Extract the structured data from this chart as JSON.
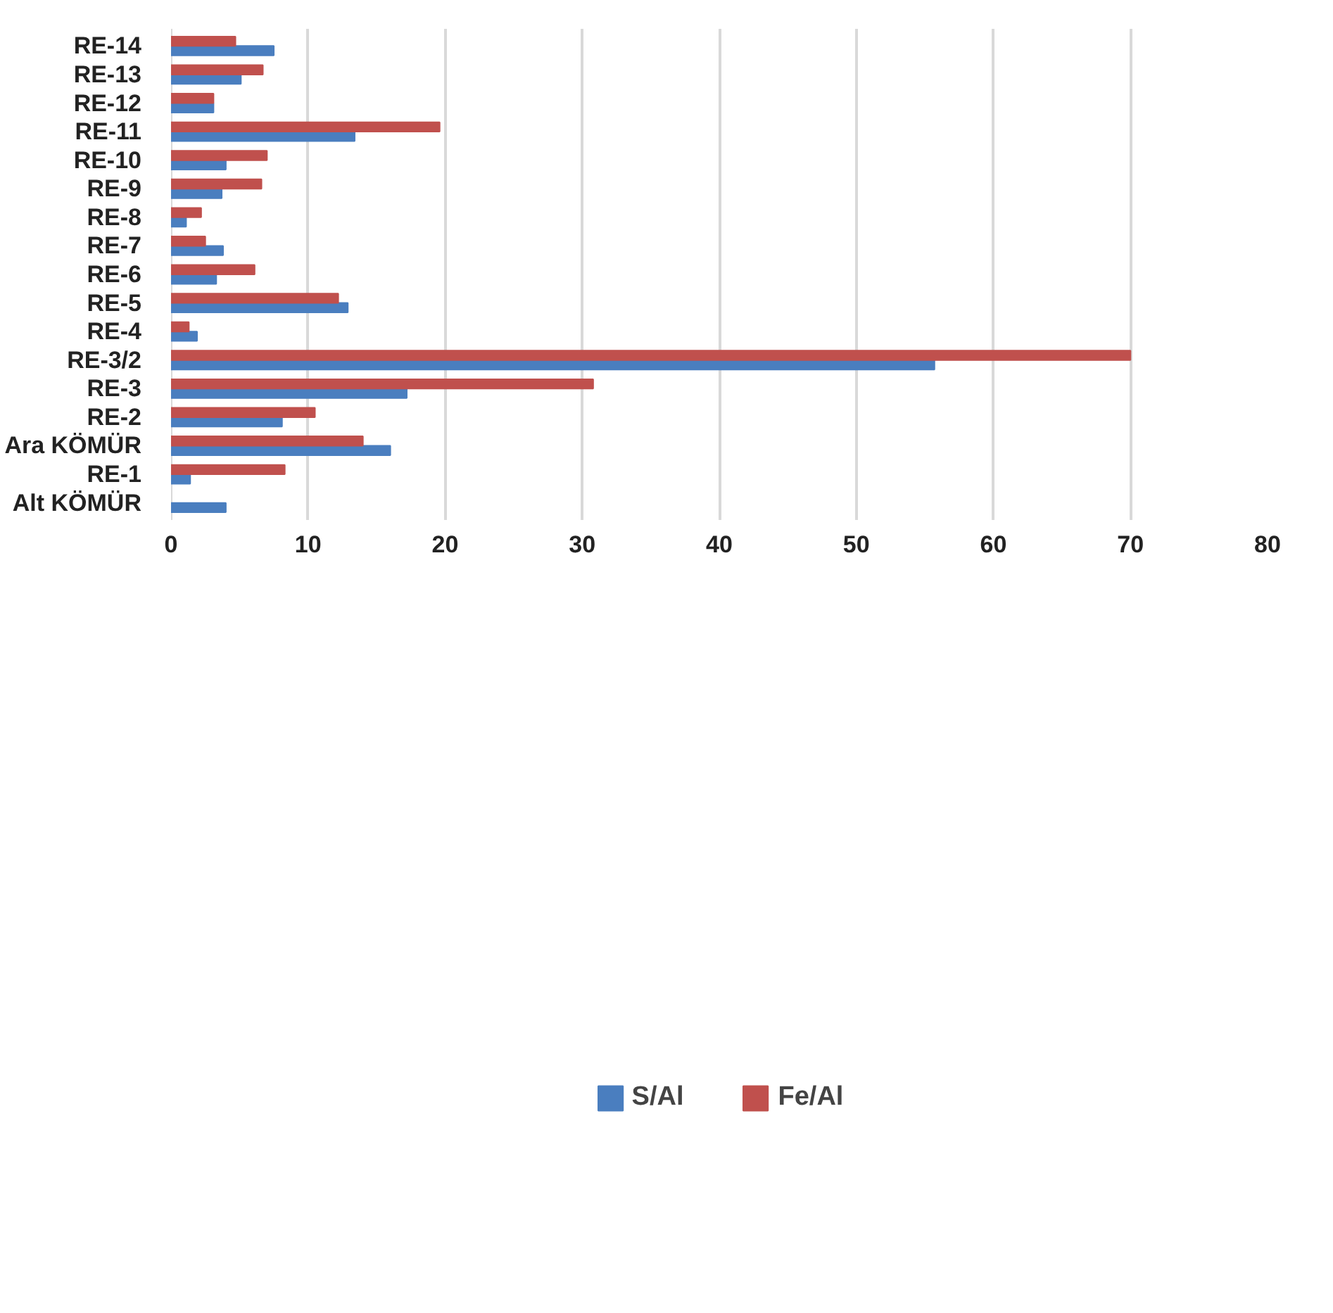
{
  "chart_data": {
    "type": "bar",
    "orientation": "horizontal",
    "categories": [
      "RE-14",
      "RE-13",
      "RE-12",
      "RE-11",
      "RE-10",
      "RE-9",
      "RE-8",
      "RE-7",
      "RE-6",
      "RE-5",
      "RE-4",
      "RE-3/2",
      "RE-3",
      "RE-2",
      "Ara KÖMÜR",
      "RE-1",
      "Alt KÖMÜR"
    ],
    "series": [
      {
        "name": "S/Al",
        "color": "#4a7ebf",
        "values": [
          7.5,
          5.1,
          3.1,
          13.4,
          4.0,
          3.7,
          1.1,
          3.8,
          3.3,
          12.9,
          1.9,
          55.7,
          17.2,
          8.1,
          16.0,
          1.4,
          4.0
        ]
      },
      {
        "name": "Fe/Al",
        "color": "#c0504d",
        "values": [
          4.7,
          6.7,
          3.1,
          19.6,
          7.0,
          6.6,
          2.2,
          2.5,
          6.1,
          12.2,
          1.3,
          70.0,
          30.8,
          10.5,
          14.0,
          8.3,
          null
        ]
      }
    ],
    "xlim": [
      0,
      80
    ],
    "xticks": [
      0,
      10,
      20,
      30,
      40,
      50,
      60,
      70,
      80
    ],
    "grid": "x",
    "legend": "bottom"
  }
}
